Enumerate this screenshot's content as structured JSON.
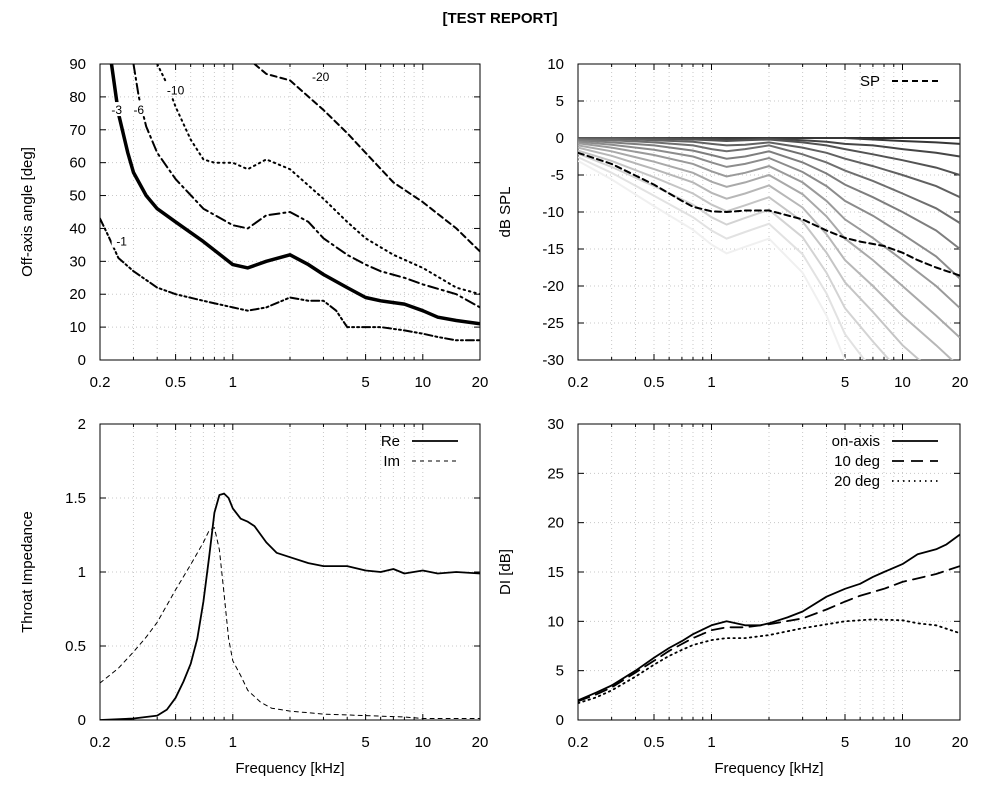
{
  "report_title": "[TEST REPORT]",
  "chart_data": [
    {
      "id": "directivity-contour",
      "type": "line",
      "xlabel": "",
      "ylabel": "Off-axis angle [deg]",
      "xscale": "log",
      "xlim": [
        0.2,
        20
      ],
      "ylim": [
        0,
        90
      ],
      "xticks": [
        0.2,
        0.5,
        1,
        5,
        10,
        20
      ],
      "xticklabels": [
        "0.2",
        "0.5",
        "1",
        "5",
        "10",
        "20"
      ],
      "yticks": [
        0,
        10,
        20,
        30,
        40,
        50,
        60,
        70,
        80,
        90
      ],
      "grid": true,
      "series": [
        {
          "name": "-1",
          "style": "dashdotdot",
          "width": 2,
          "label_at": [
            0.26,
            36
          ],
          "x": [
            0.2,
            0.22,
            0.25,
            0.3,
            0.4,
            0.5,
            0.7,
            1,
            1.2,
            1.5,
            2,
            2.5,
            3,
            3.5,
            4,
            5,
            6,
            8,
            10,
            12,
            15,
            20
          ],
          "y": [
            43,
            38,
            31,
            27,
            22,
            20,
            18,
            16,
            15,
            16,
            19,
            18,
            18,
            15,
            10,
            10,
            10,
            9,
            8,
            7,
            6,
            6
          ]
        },
        {
          "name": "-3",
          "style": "solid",
          "width": 3.5,
          "label_at": [
            0.245,
            76
          ],
          "x": [
            0.23,
            0.25,
            0.28,
            0.3,
            0.35,
            0.4,
            0.5,
            0.7,
            1,
            1.2,
            1.5,
            2,
            2.5,
            3,
            4,
            5,
            6,
            8,
            10,
            12,
            15,
            20
          ],
          "y": [
            90,
            75,
            63,
            57,
            50,
            46,
            42,
            36,
            29,
            28,
            30,
            32,
            29,
            26,
            22,
            19,
            18,
            17,
            15,
            13,
            12,
            11
          ]
        },
        {
          "name": "-6",
          "style": "dashdot",
          "width": 2,
          "label_at": [
            0.32,
            76
          ],
          "x": [
            0.3,
            0.32,
            0.35,
            0.4,
            0.5,
            0.7,
            1,
            1.2,
            1.5,
            2,
            2.5,
            3,
            4,
            5,
            6,
            8,
            10,
            15,
            20
          ],
          "y": [
            90,
            80,
            71,
            63,
            55,
            46,
            41,
            40,
            44,
            45,
            42,
            37,
            32,
            29,
            27,
            25,
            23,
            20,
            16
          ]
        },
        {
          "name": "-10",
          "style": "dotted",
          "width": 2,
          "label_at": [
            0.5,
            82
          ],
          "x": [
            0.4,
            0.45,
            0.5,
            0.6,
            0.7,
            0.8,
            1,
            1.2,
            1.5,
            2,
            3,
            4,
            5,
            7,
            10,
            15,
            20
          ],
          "y": [
            90,
            84,
            77,
            67,
            61,
            60,
            60,
            58,
            61,
            58,
            49,
            42,
            37,
            32,
            28,
            22,
            20
          ]
        },
        {
          "name": "-20",
          "style": "dashed",
          "width": 2,
          "label_at": [
            2.9,
            86
          ],
          "x": [
            1.3,
            1.5,
            2,
            3,
            4,
            5,
            7,
            10,
            15,
            20
          ],
          "y": [
            90,
            87,
            85,
            76,
            69,
            63,
            54,
            48,
            40,
            33
          ]
        }
      ]
    },
    {
      "id": "spl-response",
      "type": "line",
      "xlabel": "",
      "ylabel": "dB SPL",
      "xscale": "log",
      "xlim": [
        0.2,
        20
      ],
      "ylim": [
        -30,
        10
      ],
      "xticks": [
        0.2,
        0.5,
        1,
        5,
        10,
        20
      ],
      "xticklabels": [
        "0.2",
        "0.5",
        "1",
        "5",
        "10",
        "20"
      ],
      "yticks": [
        -30,
        -25,
        -20,
        -15,
        -10,
        -5,
        0,
        5,
        10
      ],
      "grid": true,
      "legend": "top-right",
      "family": {
        "description": "off-axis responses, darker = smaller angle",
        "x": [
          0.2,
          0.3,
          0.5,
          0.8,
          1,
          1.2,
          1.5,
          2,
          3,
          4,
          5,
          7,
          10,
          15,
          20
        ],
        "curves": [
          [
            0,
            0,
            0,
            0,
            0,
            0,
            0,
            0,
            0,
            0,
            0,
            0,
            0,
            0,
            0
          ],
          [
            0,
            0,
            0,
            0,
            0,
            0,
            0,
            0,
            0,
            0,
            0,
            -0.2,
            -0.4,
            -0.6,
            -0.8
          ],
          [
            0,
            0,
            0,
            -0.1,
            -0.1,
            -0.2,
            -0.2,
            -0.1,
            -0.3,
            -0.5,
            -0.8,
            -1,
            -1.5,
            -2,
            -2.5
          ],
          [
            0,
            0,
            -0.1,
            -0.2,
            -0.3,
            -0.4,
            -0.3,
            -0.2,
            -0.6,
            -1,
            -1.5,
            -2.2,
            -3,
            -4,
            -5
          ],
          [
            -0.1,
            -0.1,
            -0.3,
            -0.5,
            -0.8,
            -1,
            -0.9,
            -0.6,
            -1.3,
            -2,
            -2.8,
            -3.8,
            -5,
            -6.5,
            -8
          ],
          [
            -0.2,
            -0.3,
            -0.6,
            -1,
            -1.5,
            -1.8,
            -1.5,
            -1,
            -2.2,
            -3.3,
            -4.4,
            -5.8,
            -7.5,
            -9.5,
            -11.5
          ],
          [
            -0.3,
            -0.6,
            -1,
            -1.7,
            -2.3,
            -2.8,
            -2.5,
            -1.8,
            -3.3,
            -4.8,
            -6.3,
            -8,
            -10,
            -12.5,
            -15
          ],
          [
            -0.5,
            -0.9,
            -1.6,
            -2.5,
            -3.3,
            -3.9,
            -3.5,
            -2.7,
            -4.6,
            -6.5,
            -8.5,
            -10.5,
            -13,
            -16,
            -19
          ],
          [
            -0.7,
            -1.3,
            -2.3,
            -3.5,
            -4.5,
            -5.2,
            -4.7,
            -3.8,
            -6,
            -8.5,
            -11,
            -13.5,
            -16.5,
            -20,
            -23
          ],
          [
            -1,
            -1.8,
            -3.2,
            -4.7,
            -5.9,
            -6.6,
            -6,
            -5,
            -7.6,
            -10.6,
            -13.6,
            -16.5,
            -20,
            -24,
            -27
          ],
          [
            -1.3,
            -2.4,
            -4.2,
            -6,
            -7.4,
            -8.2,
            -7.5,
            -6.4,
            -9.4,
            -13,
            -16.5,
            -20,
            -24,
            -28,
            -31
          ],
          [
            -1.7,
            -3.1,
            -5.3,
            -7.5,
            -9,
            -9.9,
            -9.1,
            -8,
            -11.3,
            -15.5,
            -19.5,
            -23.5,
            -28,
            -32,
            -35
          ],
          [
            -2.1,
            -3.9,
            -6.5,
            -9,
            -10.7,
            -11.7,
            -10.8,
            -9.7,
            -13.4,
            -18.2,
            -23,
            -27.5,
            -32,
            -36,
            -40
          ],
          [
            -2.6,
            -4.7,
            -7.8,
            -10.7,
            -12.5,
            -13.6,
            -12.7,
            -11.6,
            -15.7,
            -21,
            -26.5,
            -31.5,
            -36,
            -40,
            -44
          ],
          [
            -3.1,
            -5.6,
            -9.2,
            -12.4,
            -14.4,
            -15.6,
            -14.7,
            -13.6,
            -18.2,
            -24,
            -30,
            -35,
            -40,
            -44,
            -48
          ]
        ]
      },
      "series": [
        {
          "name": "SP",
          "style": "dashed",
          "width": 2,
          "x": [
            0.2,
            0.3,
            0.5,
            0.7,
            0.8,
            1,
            1.2,
            1.5,
            2,
            3,
            4,
            5,
            6,
            8,
            10,
            12,
            15,
            20
          ],
          "y": [
            -2,
            -3.5,
            -6.3,
            -8.5,
            -9.3,
            -9.9,
            -10,
            -9.8,
            -9.8,
            -11,
            -12.5,
            -13.5,
            -14,
            -14.6,
            -15.5,
            -16.5,
            -17.5,
            -18.6
          ]
        }
      ]
    },
    {
      "id": "throat-impedance",
      "type": "line",
      "xlabel": "Frequency [kHz]",
      "ylabel": "Throat Impedance",
      "xscale": "log",
      "xlim": [
        0.2,
        20
      ],
      "ylim": [
        0,
        2
      ],
      "xticks": [
        0.2,
        0.5,
        1,
        5,
        10,
        20
      ],
      "xticklabels": [
        "0.2",
        "0.5",
        "1",
        "5",
        "10",
        "20"
      ],
      "yticks": [
        0,
        0.5,
        1,
        1.5,
        2
      ],
      "yticklabels": [
        "0",
        "0.5",
        "1",
        "1.5",
        "2"
      ],
      "grid": true,
      "legend": "top-right",
      "series": [
        {
          "name": "Re",
          "style": "solid",
          "width": 1.8,
          "x": [
            0.2,
            0.3,
            0.4,
            0.45,
            0.5,
            0.55,
            0.6,
            0.65,
            0.7,
            0.75,
            0.8,
            0.85,
            0.9,
            0.95,
            1,
            1.1,
            1.2,
            1.3,
            1.5,
            1.7,
            2,
            2.5,
            3,
            4,
            5,
            6,
            7,
            8,
            10,
            12,
            15,
            20
          ],
          "y": [
            0,
            0.01,
            0.03,
            0.07,
            0.15,
            0.26,
            0.38,
            0.55,
            0.8,
            1.1,
            1.4,
            1.52,
            1.53,
            1.5,
            1.43,
            1.36,
            1.34,
            1.31,
            1.2,
            1.13,
            1.1,
            1.06,
            1.04,
            1.04,
            1.01,
            1.0,
            1.02,
            0.99,
            1.01,
            0.99,
            1.0,
            0.99
          ]
        },
        {
          "name": "Im",
          "style": "dashed-fine",
          "width": 1,
          "x": [
            0.2,
            0.25,
            0.3,
            0.35,
            0.4,
            0.5,
            0.6,
            0.7,
            0.75,
            0.8,
            0.85,
            0.9,
            0.95,
            1,
            1.1,
            1.2,
            1.4,
            1.6,
            2,
            3,
            5,
            8,
            10,
            15,
            20
          ],
          "y": [
            0.25,
            0.35,
            0.46,
            0.56,
            0.66,
            0.88,
            1.05,
            1.2,
            1.28,
            1.3,
            1.15,
            0.85,
            0.55,
            0.4,
            0.3,
            0.2,
            0.12,
            0.08,
            0.06,
            0.04,
            0.03,
            0.02,
            0.01,
            0.01,
            0.01
          ]
        }
      ]
    },
    {
      "id": "directivity-index",
      "type": "line",
      "xlabel": "Frequency [kHz]",
      "ylabel": "DI [dB]",
      "xscale": "log",
      "xlim": [
        0.2,
        20
      ],
      "ylim": [
        0,
        30
      ],
      "xticks": [
        0.2,
        0.5,
        1,
        5,
        10,
        20
      ],
      "xticklabels": [
        "0.2",
        "0.5",
        "1",
        "5",
        "10",
        "20"
      ],
      "yticks": [
        0,
        5,
        10,
        15,
        20,
        25,
        30
      ],
      "grid": true,
      "legend": "top-right",
      "series": [
        {
          "name": "on-axis",
          "style": "solid",
          "width": 1.8,
          "x": [
            0.2,
            0.25,
            0.3,
            0.4,
            0.5,
            0.6,
            0.7,
            0.8,
            1,
            1.2,
            1.5,
            1.8,
            2,
            2.5,
            3,
            4,
            5,
            6,
            7,
            8,
            10,
            12,
            15,
            17,
            20
          ],
          "y": [
            2,
            2.8,
            3.5,
            5,
            6.3,
            7.3,
            8,
            8.7,
            9.6,
            10,
            9.6,
            9.6,
            9.8,
            10.4,
            11,
            12.5,
            13.3,
            13.8,
            14.5,
            15,
            15.8,
            16.8,
            17.3,
            17.8,
            18.8
          ]
        },
        {
          "name": "10 deg",
          "style": "dashed-long",
          "width": 1.8,
          "x": [
            0.2,
            0.25,
            0.3,
            0.4,
            0.5,
            0.6,
            0.7,
            0.8,
            1,
            1.2,
            1.5,
            2,
            3,
            4,
            5,
            6,
            8,
            10,
            15,
            20
          ],
          "y": [
            1.9,
            2.6,
            3.3,
            4.8,
            6,
            7,
            7.7,
            8.3,
            9.1,
            9.4,
            9.4,
            9.7,
            10.3,
            11.2,
            12,
            12.6,
            13.3,
            14,
            14.8,
            15.6
          ]
        },
        {
          "name": "20 deg",
          "style": "dotted",
          "width": 1.8,
          "x": [
            0.2,
            0.25,
            0.3,
            0.4,
            0.5,
            0.6,
            0.7,
            0.8,
            1,
            1.2,
            1.5,
            2,
            3,
            5,
            7,
            10,
            12,
            15,
            20
          ],
          "y": [
            1.7,
            2.3,
            3,
            4.4,
            5.6,
            6.5,
            7.1,
            7.6,
            8.1,
            8.3,
            8.3,
            8.6,
            9.3,
            10,
            10.2,
            10.1,
            9.8,
            9.6,
            8.8
          ]
        }
      ]
    }
  ]
}
